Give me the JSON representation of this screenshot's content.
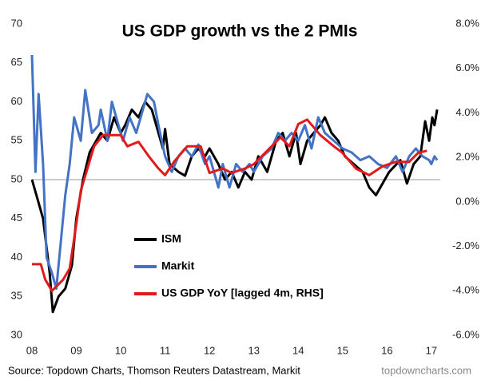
{
  "chart_data": {
    "type": "line",
    "title": "US GDP growth vs the 2 PMIs",
    "source": "Source: Topdown Charts, Thomson Reuters Datastream, Markit",
    "watermark": "topdowncharts.com",
    "xlim": [
      2008,
      2017.2
    ],
    "xticks": [
      {
        "value": 2008,
        "label": "08"
      },
      {
        "value": 2009,
        "label": "09"
      },
      {
        "value": 2010,
        "label": "10"
      },
      {
        "value": 2011,
        "label": "11"
      },
      {
        "value": 2012,
        "label": "12"
      },
      {
        "value": 2013,
        "label": "13"
      },
      {
        "value": 2014,
        "label": "14"
      },
      {
        "value": 2015,
        "label": "15"
      },
      {
        "value": 2016,
        "label": "16"
      },
      {
        "value": 2017,
        "label": "17"
      }
    ],
    "ylim": [
      30,
      70
    ],
    "yticks": [
      30,
      35,
      40,
      45,
      50,
      55,
      60,
      65,
      70
    ],
    "y2lim": [
      -6,
      8
    ],
    "y2ticks": [
      {
        "value": -6,
        "label": "-6.0%"
      },
      {
        "value": -4,
        "label": "-4.0%"
      },
      {
        "value": -2,
        "label": "-2.0%"
      },
      {
        "value": 0,
        "label": "0.0%"
      },
      {
        "value": 2,
        "label": "2.0%"
      },
      {
        "value": 4,
        "label": "4.0%"
      },
      {
        "value": 6,
        "label": "6.0%"
      },
      {
        "value": 8,
        "label": "8.0%"
      }
    ],
    "reference_line": 50,
    "series": [
      {
        "name": "ISM",
        "color": "#000000",
        "x": [
          2008.0,
          2008.1,
          2008.25,
          2008.4,
          2008.47,
          2008.6,
          2008.75,
          2008.9,
          2009.0,
          2009.15,
          2009.3,
          2009.45,
          2009.55,
          2009.7,
          2009.85,
          2010.0,
          2010.1,
          2010.25,
          2010.4,
          2010.55,
          2010.7,
          2010.85,
          2010.95,
          2011.0,
          2011.1,
          2011.3,
          2011.45,
          2011.6,
          2011.75,
          2011.9,
          2012.0,
          2012.2,
          2012.35,
          2012.5,
          2012.65,
          2012.8,
          2012.95,
          2013.1,
          2013.3,
          2013.5,
          2013.65,
          2013.8,
          2013.95,
          2014.05,
          2014.2,
          2014.35,
          2014.5,
          2014.6,
          2014.75,
          2014.9,
          2015.05,
          2015.25,
          2015.45,
          2015.6,
          2015.75,
          2015.9,
          2016.05,
          2016.3,
          2016.45,
          2016.6,
          2016.75,
          2016.86,
          2016.95,
          2017.02,
          2017.07,
          2017.13
        ],
        "values": [
          50,
          48,
          45,
          38,
          33,
          35,
          36,
          39,
          45,
          50,
          53.5,
          55,
          56,
          55,
          58,
          56,
          57,
          59,
          58,
          60,
          59,
          56,
          54,
          56.5,
          52,
          51,
          50.5,
          53,
          54,
          53,
          54,
          52,
          50,
          51,
          49,
          51,
          50,
          53,
          51,
          55,
          56,
          53,
          56,
          52,
          55,
          56,
          57,
          58,
          56,
          55,
          53,
          52,
          51,
          49,
          48,
          49.5,
          51,
          52.5,
          49.5,
          52,
          53,
          57.5,
          55,
          58,
          57,
          59
        ]
      },
      {
        "name": "Markit",
        "color": "#4472c4",
        "x": [
          2008.0,
          2008.08,
          2008.15,
          2008.25,
          2008.33,
          2008.45,
          2008.55,
          2008.65,
          2008.75,
          2008.85,
          2008.95,
          2009.1,
          2009.2,
          2009.35,
          2009.5,
          2009.55,
          2009.7,
          2009.8,
          2009.95,
          2010.05,
          2010.2,
          2010.35,
          2010.6,
          2010.75,
          2010.85,
          2011.0,
          2011.15,
          2011.3,
          2011.45,
          2011.6,
          2011.75,
          2011.9,
          2012.0,
          2012.2,
          2012.3,
          2012.45,
          2012.6,
          2012.75,
          2012.9,
          2013.0,
          2013.2,
          2013.4,
          2013.55,
          2013.7,
          2013.85,
          2014.0,
          2014.15,
          2014.3,
          2014.45,
          2014.6,
          2014.8,
          2015.0,
          2015.2,
          2015.4,
          2015.6,
          2015.8,
          2016.0,
          2016.2,
          2016.35,
          2016.5,
          2016.65,
          2016.8,
          2016.95,
          2017.0,
          2017.07,
          2017.13
        ],
        "values": [
          66,
          51,
          61,
          52,
          40,
          38,
          36,
          42,
          48,
          52,
          58,
          55,
          61.5,
          56,
          57,
          59,
          55,
          60,
          57,
          55,
          58,
          56,
          61,
          60,
          57,
          53,
          51,
          53,
          54,
          53,
          54.5,
          52,
          53,
          49,
          52,
          49,
          52,
          51,
          52,
          51,
          53,
          54,
          56,
          55,
          56,
          55,
          57,
          54,
          58,
          56,
          55,
          54,
          53.5,
          52.5,
          53,
          52,
          51.5,
          53,
          51,
          53,
          54,
          53,
          52.5,
          52,
          53,
          52.5
        ]
      },
      {
        "name": "US GDP YoY [lagged 4m, RHS]",
        "color": "#e31a1c",
        "axis": "y2",
        "x": [
          2008.0,
          2008.2,
          2008.3,
          2008.45,
          2008.7,
          2008.85,
          2009.0,
          2009.1,
          2009.25,
          2009.4,
          2009.6,
          2010.0,
          2010.15,
          2010.4,
          2010.65,
          2010.85,
          2011.0,
          2011.2,
          2011.5,
          2011.8,
          2012.0,
          2012.3,
          2012.5,
          2012.8,
          2013.0,
          2013.3,
          2013.6,
          2013.8,
          2014.0,
          2014.2,
          2014.5,
          2014.8,
          2015.0,
          2015.3,
          2015.6,
          2015.9,
          2016.2,
          2016.5,
          2016.7,
          2016.9
        ],
        "values": [
          -2.8,
          -2.8,
          -3.5,
          -4.0,
          -3.5,
          -3.0,
          -1.0,
          0.5,
          1.5,
          2.5,
          3.0,
          3.0,
          2.5,
          2.7,
          2.0,
          1.5,
          1.2,
          1.8,
          2.5,
          2.5,
          1.3,
          1.5,
          1.3,
          1.5,
          1.7,
          2.3,
          2.9,
          2.5,
          3.5,
          3.7,
          3.0,
          2.5,
          2.2,
          1.5,
          1.2,
          1.6,
          1.8,
          1.8,
          2.2,
          2.3
        ]
      }
    ]
  }
}
